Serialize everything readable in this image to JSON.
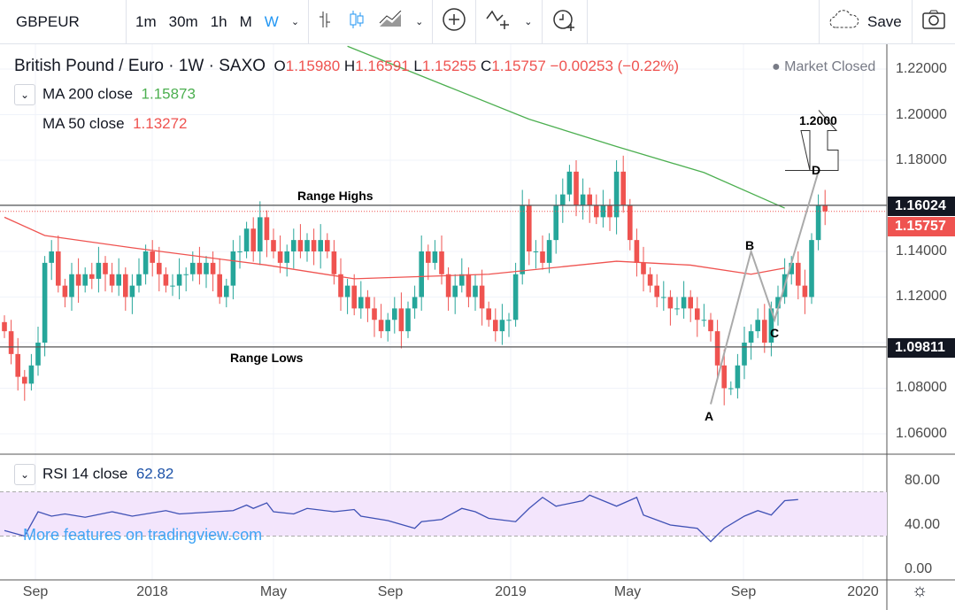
{
  "toolbar": {
    "symbol": "GBPEUR",
    "intervals": [
      "1m",
      "30m",
      "1h",
      "M",
      "W"
    ],
    "active_interval": "W",
    "save_label": "Save"
  },
  "legend": {
    "title": "British Pound / Euro · 1W · SAXO",
    "o_label": "O",
    "o": "1.15980",
    "h_label": "H",
    "h": "1.16591",
    "l_label": "L",
    "l": "1.15255",
    "c_label": "C",
    "c": "1.15757",
    "change": "−0.00253 (−0.22%)",
    "market_status": "Market Closed",
    "ma200_label": "MA  200 close",
    "ma200_value": "1.15873",
    "ma50_label": "MA  50 close",
    "ma50_value": "1.13272",
    "rsi_label": "RSI  14 close",
    "rsi_value": "62.82",
    "watermark": "More features on tradingview.com"
  },
  "price_axis": [
    "1.22000",
    "1.20000",
    "1.18000",
    "1.14000",
    "1.12000",
    "1.08000",
    "1.06000"
  ],
  "price_labels": {
    "range_high": "1.16024",
    "last": "1.15757",
    "range_low": "1.09811"
  },
  "rsi_axis": [
    "80.00",
    "40.00",
    "0.00"
  ],
  "time_axis": [
    "Sep",
    "2018",
    "May",
    "Sep",
    "2019",
    "May",
    "Sep",
    "2020"
  ],
  "annotations": {
    "range_highs": "Range Highs",
    "range_lows": "Range Lows",
    "a": "A",
    "b": "B",
    "c": "C",
    "d": "D",
    "target": "1.2000"
  },
  "colors": {
    "up": "#26a69a",
    "down": "#ef5350",
    "ma200": "#4caf50",
    "ma50": "#ef5350",
    "rsi": "#3f51b5"
  },
  "chart_data": {
    "type": "candlestick",
    "closes": [
      1.105,
      1.095,
      1.085,
      1.082,
      1.09,
      1.1,
      1.135,
      1.14,
      1.125,
      1.12,
      1.13,
      1.125,
      1.13,
      1.128,
      1.135,
      1.13,
      1.125,
      1.13,
      1.12,
      1.125,
      1.13,
      1.14,
      1.135,
      1.13,
      1.125,
      1.125,
      1.13,
      1.13,
      1.135,
      1.13,
      1.135,
      1.13,
      1.12,
      1.125,
      1.14,
      1.14,
      1.15,
      1.14,
      1.155,
      1.145,
      1.14,
      1.135,
      1.14,
      1.145,
      1.14,
      1.145,
      1.14,
      1.145,
      1.14,
      1.13,
      1.12,
      1.125,
      1.115,
      1.12,
      1.115,
      1.11,
      1.105,
      1.11,
      1.115,
      1.105,
      1.115,
      1.12,
      1.14,
      1.135,
      1.14,
      1.13,
      1.12,
      1.125,
      1.13,
      1.12,
      1.125,
      1.115,
      1.11,
      1.105,
      1.11,
      1.11,
      1.13,
      1.16,
      1.14,
      1.14,
      1.135,
      1.145,
      1.16,
      1.165,
      1.175,
      1.16,
      1.165,
      1.16,
      1.155,
      1.16,
      1.155,
      1.175,
      1.16,
      1.145,
      1.135,
      1.13,
      1.125,
      1.12,
      1.12,
      1.115,
      1.115,
      1.12,
      1.115,
      1.11,
      1.11,
      1.105,
      1.09,
      1.08,
      1.08,
      1.09,
      1.1,
      1.105,
      1.11,
      1.1,
      1.115,
      1.12,
      1.13,
      1.135,
      1.125,
      1.12,
      1.145,
      1.16,
      1.15757
    ],
    "ma200": [
      [
        51,
        1.23
      ],
      [
        65,
        1.2134
      ],
      [
        78,
        1.198
      ],
      [
        91,
        1.186
      ],
      [
        104,
        1.1746
      ],
      [
        116,
        1.159
      ]
    ],
    "ma50": [
      [
        0,
        1.155
      ],
      [
        6,
        1.147
      ],
      [
        19,
        1.1416
      ],
      [
        39,
        1.134
      ],
      [
        52,
        1.128
      ],
      [
        72,
        1.13
      ],
      [
        91,
        1.1357
      ],
      [
        102,
        1.134
      ],
      [
        111,
        1.13
      ],
      [
        116,
        1.1327
      ]
    ],
    "rsi": [
      [
        0,
        35
      ],
      [
        3,
        30
      ],
      [
        5,
        52
      ],
      [
        7,
        48
      ],
      [
        9,
        50
      ],
      [
        12,
        47
      ],
      [
        16,
        52
      ],
      [
        19,
        48
      ],
      [
        24,
        53
      ],
      [
        26,
        50
      ],
      [
        34,
        53
      ],
      [
        36,
        58
      ],
      [
        37,
        55
      ],
      [
        39,
        60
      ],
      [
        40,
        52
      ],
      [
        43,
        50
      ],
      [
        45,
        55
      ],
      [
        49,
        52
      ],
      [
        52,
        54
      ],
      [
        53,
        48
      ],
      [
        57,
        44
      ],
      [
        61,
        37
      ],
      [
        62,
        43
      ],
      [
        65,
        45
      ],
      [
        68,
        55
      ],
      [
        70,
        52
      ],
      [
        72,
        46
      ],
      [
        76,
        43
      ],
      [
        78,
        55
      ],
      [
        80,
        65
      ],
      [
        82,
        57
      ],
      [
        86,
        62
      ],
      [
        87,
        67
      ],
      [
        91,
        57
      ],
      [
        94,
        65
      ],
      [
        95,
        49
      ],
      [
        99,
        40
      ],
      [
        103,
        37
      ],
      [
        105,
        25
      ],
      [
        107,
        37
      ],
      [
        110,
        48
      ],
      [
        112,
        53
      ],
      [
        114,
        49
      ],
      [
        116,
        62
      ],
      [
        118,
        63
      ]
    ],
    "range_high": 1.16024,
    "range_low": 1.09811,
    "ylim": [
      1.05,
      1.23
    ],
    "rsi_ylim": [
      0,
      100
    ],
    "abcd": [
      [
        1.073,
        "A"
      ],
      [
        1.14,
        "B"
      ],
      [
        1.11,
        "C"
      ],
      [
        1.175,
        "D"
      ]
    ],
    "target": 1.2
  }
}
